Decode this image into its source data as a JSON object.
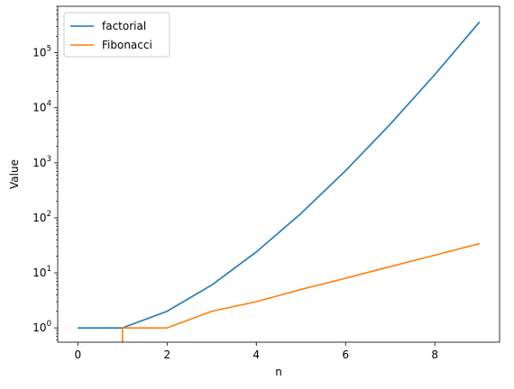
{
  "chart_data": {
    "type": "line",
    "title": "",
    "xlabel": "n",
    "ylabel": "Value",
    "yscale": "log",
    "xlim": [
      -0.45,
      9.45
    ],
    "ylim": [
      0.55,
      700000
    ],
    "x_ticks": [
      0,
      2,
      4,
      6,
      8
    ],
    "y_ticks": [
      {
        "value": 1,
        "base": "10",
        "exp": "0"
      },
      {
        "value": 10,
        "base": "10",
        "exp": "1"
      },
      {
        "value": 100,
        "base": "10",
        "exp": "2"
      },
      {
        "value": 1000,
        "base": "10",
        "exp": "3"
      },
      {
        "value": 10000,
        "base": "10",
        "exp": "4"
      },
      {
        "value": 100000,
        "base": "10",
        "exp": "5"
      }
    ],
    "grid": false,
    "legend_position": "top-left",
    "series": [
      {
        "name": "factorial",
        "color": "#1f77b4",
        "x": [
          0,
          1,
          2,
          3,
          4,
          5,
          6,
          7,
          8,
          9
        ],
        "y": [
          1,
          1,
          2,
          6,
          24,
          120,
          720,
          5040,
          40320,
          362880
        ]
      },
      {
        "name": "Fibonacci",
        "color": "#ff7f0e",
        "x": [
          0,
          1,
          1,
          2,
          3,
          4,
          5,
          6,
          7,
          8,
          9
        ],
        "y": [
          0,
          0,
          1,
          1,
          2,
          3,
          5,
          8,
          13,
          21,
          34
        ]
      }
    ]
  }
}
